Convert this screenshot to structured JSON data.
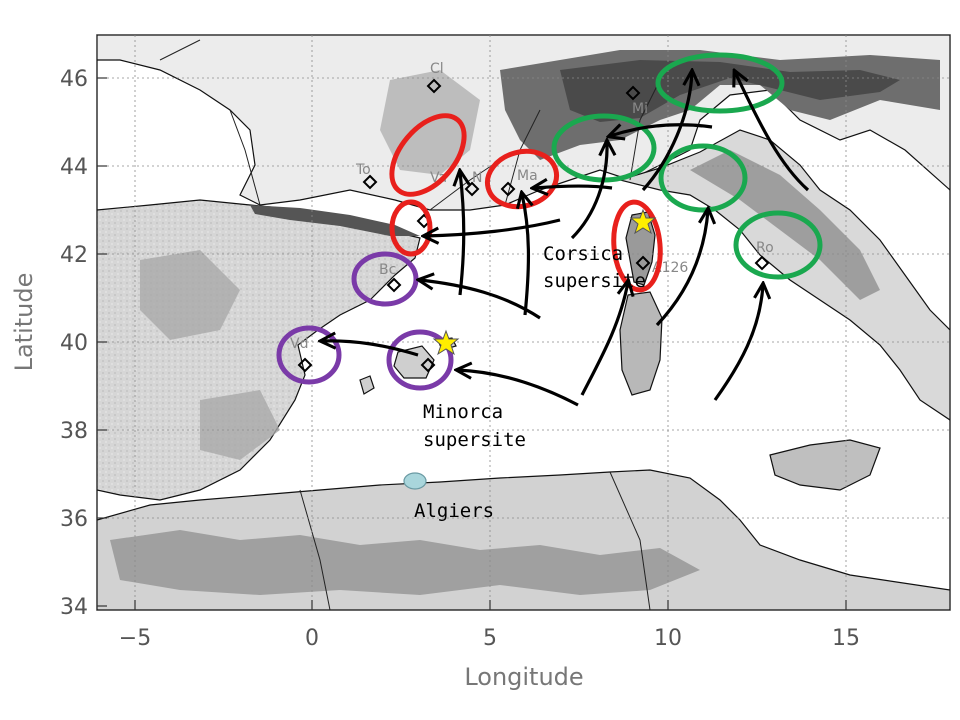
{
  "figure": {
    "xlabel": "Longitude",
    "ylabel": "Latitude",
    "x_ticks": [
      "−5",
      "0",
      "5",
      "10",
      "15"
    ],
    "y_ticks": [
      "34",
      "36",
      "38",
      "40",
      "42",
      "44",
      "46"
    ]
  },
  "sites": [
    {
      "label": "Cl"
    },
    {
      "label": "Mi"
    },
    {
      "label": "To"
    },
    {
      "label": "Va"
    },
    {
      "label": "N"
    },
    {
      "label": "Ma"
    },
    {
      "label": "Ro"
    },
    {
      "label": "Bc"
    },
    {
      "label": "Vd"
    },
    {
      "label": "A126"
    }
  ],
  "callouts": {
    "corsica_line1": "Corsica",
    "corsica_line2": "supersite",
    "minorca_line1": "Minorca",
    "minorca_line2": "supersite",
    "algiers": "Algiers"
  },
  "colors": {
    "red_ring": "#e8201c",
    "green_ring": "#1aa84f",
    "purple_ring": "#7a3aa8",
    "star": "#ffee00",
    "algiers_marker": "#a9d6dc"
  }
}
